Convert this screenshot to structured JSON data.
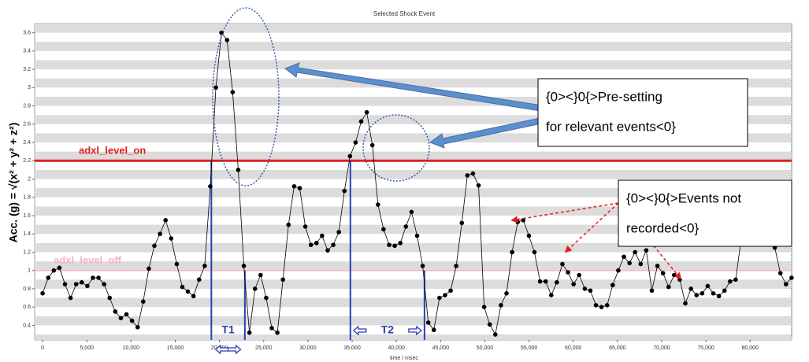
{
  "chart_data": {
    "type": "line",
    "title": "Selected Shock Event",
    "x_label": "time / msec",
    "y_label": "Acc. (g) = √(x² + y² + z²)",
    "color": "#000000",
    "x": [
      0,
      632,
      1264,
      1896,
      2528,
      3160,
      3792,
      4424,
      5056,
      5688,
      6320,
      6952,
      7584,
      8216,
      8848,
      9480,
      10112,
      10744,
      11376,
      12008,
      12640,
      13272,
      13904,
      14536,
      15168,
      15800,
      16432,
      17064,
      17696,
      18328,
      18960,
      19592,
      20224,
      20856,
      21488,
      22120,
      22752,
      23384,
      24016,
      24648,
      25280,
      25912,
      26544,
      27176,
      27808,
      28440,
      29072,
      29704,
      30336,
      30968,
      31600,
      32232,
      32864,
      33496,
      34128,
      34760,
      35392,
      36024,
      36656,
      37288,
      37920,
      38552,
      39184,
      39816,
      40448,
      41080,
      41712,
      42344,
      42976,
      43608,
      44240,
      44872,
      45504,
      46136,
      46768,
      47400,
      48032,
      48664,
      49296,
      49928,
      50560,
      51192,
      51824,
      52456,
      53088,
      53720,
      54352,
      54984,
      55616,
      56248,
      56880,
      57512,
      58144,
      58776,
      59408,
      60040,
      60672,
      61304,
      61936,
      62568,
      63200,
      63832,
      64464,
      65096,
      65728,
      66360,
      66992,
      67624,
      68256,
      68888,
      69520,
      70152,
      70784,
      71416,
      72048,
      72680,
      73312,
      73944,
      74576,
      75208,
      75840,
      76472,
      77104,
      77736,
      78368,
      79000,
      79632,
      80264,
      80896,
      81528,
      82160,
      82792,
      83424,
      84056,
      84688
    ],
    "values": [
      0.75,
      0.92,
      1.0,
      1.03,
      0.85,
      0.7,
      0.85,
      0.87,
      0.83,
      0.92,
      0.92,
      0.85,
      0.7,
      0.55,
      0.48,
      0.52,
      0.45,
      0.38,
      0.66,
      1.02,
      1.27,
      1.4,
      1.55,
      1.35,
      1.07,
      0.82,
      0.77,
      0.72,
      0.9,
      1.05,
      1.92,
      3.0,
      3.6,
      3.52,
      2.95,
      2.1,
      1.05,
      0.32,
      0.8,
      0.95,
      0.7,
      0.37,
      0.32,
      0.9,
      1.5,
      1.92,
      1.9,
      1.48,
      1.28,
      1.3,
      1.38,
      1.22,
      1.28,
      1.42,
      1.87,
      2.25,
      2.4,
      2.63,
      2.73,
      2.37,
      1.72,
      1.45,
      1.28,
      1.27,
      1.3,
      1.48,
      1.64,
      1.38,
      1.05,
      0.43,
      0.35,
      0.7,
      0.73,
      0.78,
      1.05,
      1.52,
      2.04,
      2.06,
      1.93,
      0.6,
      0.41,
      0.3,
      0.62,
      0.75,
      1.2,
      1.53,
      1.55,
      1.38,
      1.2,
      0.88,
      0.88,
      0.73,
      0.87,
      1.07,
      0.98,
      0.85,
      0.95,
      0.8,
      0.78,
      0.62,
      0.6,
      0.62,
      0.84,
      1.0,
      1.15,
      1.08,
      1.2,
      1.07,
      1.22,
      0.78,
      1.05,
      0.97,
      0.82,
      0.95,
      0.9,
      0.64,
      0.8,
      0.73,
      0.75,
      0.83,
      0.75,
      0.72,
      0.78,
      0.88,
      0.9,
      1.35,
      1.45,
      1.6,
      1.55,
      1.45,
      1.35,
      1.25,
      0.97,
      0.85,
      0.92
    ],
    "xlim": [
      -900,
      84700
    ],
    "ylim": [
      0.24,
      3.7
    ],
    "xticks": [
      0,
      {
        "value": 5000,
        "label": "5,000"
      },
      {
        "value": 10000,
        "label": "10,000"
      },
      {
        "value": 15000,
        "label": "15,000"
      },
      {
        "value": 20000,
        "label": "20,000"
      },
      {
        "value": 25000,
        "label": "25,000"
      },
      {
        "value": 30000,
        "label": "30,000"
      },
      {
        "value": 35000,
        "label": "35,000"
      },
      {
        "value": 40000,
        "label": "40,000"
      },
      {
        "value": 45000,
        "label": "45,000"
      },
      {
        "value": 50000,
        "label": "50,000"
      },
      {
        "value": 55000,
        "label": "55,000"
      },
      {
        "value": 60000,
        "label": "60,000"
      },
      {
        "value": 65000,
        "label": "65,000"
      },
      {
        "value": 70000,
        "label": "70,000"
      },
      {
        "value": 75000,
        "label": "75,000"
      },
      {
        "value": 80000,
        "label": "80,000"
      }
    ],
    "yticks": [
      0.4,
      0.6,
      0.8,
      1,
      1.2,
      1.4,
      1.6,
      1.8,
      2,
      2.2,
      2.4,
      2.6,
      2.8,
      3,
      3.2,
      3.4,
      3.6
    ],
    "levels": [
      {
        "label": "adxl_level_on",
        "value": 2.2,
        "color": "#e02020"
      },
      {
        "label": "adxl_level_off",
        "value": 1.0,
        "color": "#f5b3c6"
      }
    ],
    "markers": [
      {
        "label": "T1",
        "start": 19080,
        "end": 22870
      },
      {
        "label": "T2",
        "start": 34800,
        "end": 43180
      }
    ],
    "callouts": [
      {
        "lines": [
          "{0><}0{>Pre-setting",
          "for relevant events<0}"
        ]
      },
      {
        "lines": [
          "{0><}0{>Events not",
          "recorded<0}"
        ]
      }
    ]
  }
}
